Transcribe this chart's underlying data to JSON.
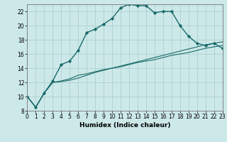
{
  "xlabel": "Humidex (Indice chaleur)",
  "background_color": "#cce8e8",
  "grid_color": "#aacccc",
  "line_color": "#1a6b6b",
  "ylim": [
    8,
    23
  ],
  "xlim": [
    0,
    23
  ],
  "yticks": [
    8,
    10,
    12,
    14,
    16,
    18,
    20,
    22
  ],
  "xticks": [
    0,
    1,
    2,
    3,
    4,
    5,
    6,
    7,
    8,
    9,
    10,
    11,
    12,
    13,
    14,
    15,
    16,
    17,
    18,
    19,
    20,
    21,
    22,
    23
  ],
  "series": [
    {
      "x": [
        0,
        1,
        2,
        3,
        4,
        5,
        6,
        7,
        8,
        9,
        10,
        11,
        12,
        13,
        14,
        15,
        16,
        17,
        18,
        19,
        20,
        21,
        22,
        23
      ],
      "y": [
        10,
        8.5,
        10.5,
        12.2,
        14.5,
        15.0,
        16.5,
        19.0,
        19.5,
        20.2,
        21.0,
        22.5,
        23.0,
        22.8,
        22.8,
        21.8,
        22.0,
        22.0,
        20.0,
        18.5,
        17.5,
        17.2,
        17.5,
        16.8
      ],
      "marker": true,
      "linewidth": 1.0
    },
    {
      "x": [
        0,
        1,
        2,
        3,
        4,
        5,
        6,
        7,
        8,
        9,
        10,
        11,
        12,
        13,
        14,
        15,
        16,
        17,
        18,
        19,
        20,
        21,
        22,
        23
      ],
      "y": [
        10,
        8.5,
        10.5,
        12.0,
        12.2,
        12.5,
        13.0,
        13.2,
        13.5,
        13.8,
        14.0,
        14.2,
        14.5,
        14.8,
        15.0,
        15.2,
        15.5,
        15.8,
        16.0,
        16.2,
        16.5,
        16.8,
        17.0,
        17.2
      ],
      "marker": false,
      "linewidth": 0.8
    },
    {
      "x": [
        0,
        1,
        2,
        3,
        4,
        5,
        6,
        7,
        8,
        9,
        10,
        11,
        12,
        13,
        14,
        15,
        16,
        17,
        18,
        19,
        20,
        21,
        22,
        23
      ],
      "y": [
        10,
        8.5,
        10.5,
        12.0,
        12.1,
        12.3,
        12.6,
        13.0,
        13.4,
        13.7,
        14.0,
        14.3,
        14.6,
        14.9,
        15.2,
        15.5,
        15.8,
        16.1,
        16.4,
        16.7,
        17.0,
        17.3,
        17.5,
        17.7
      ],
      "marker": false,
      "linewidth": 0.8
    }
  ],
  "tick_fontsize": 5.5,
  "xlabel_fontsize": 6.5,
  "marker_size": 2.2
}
